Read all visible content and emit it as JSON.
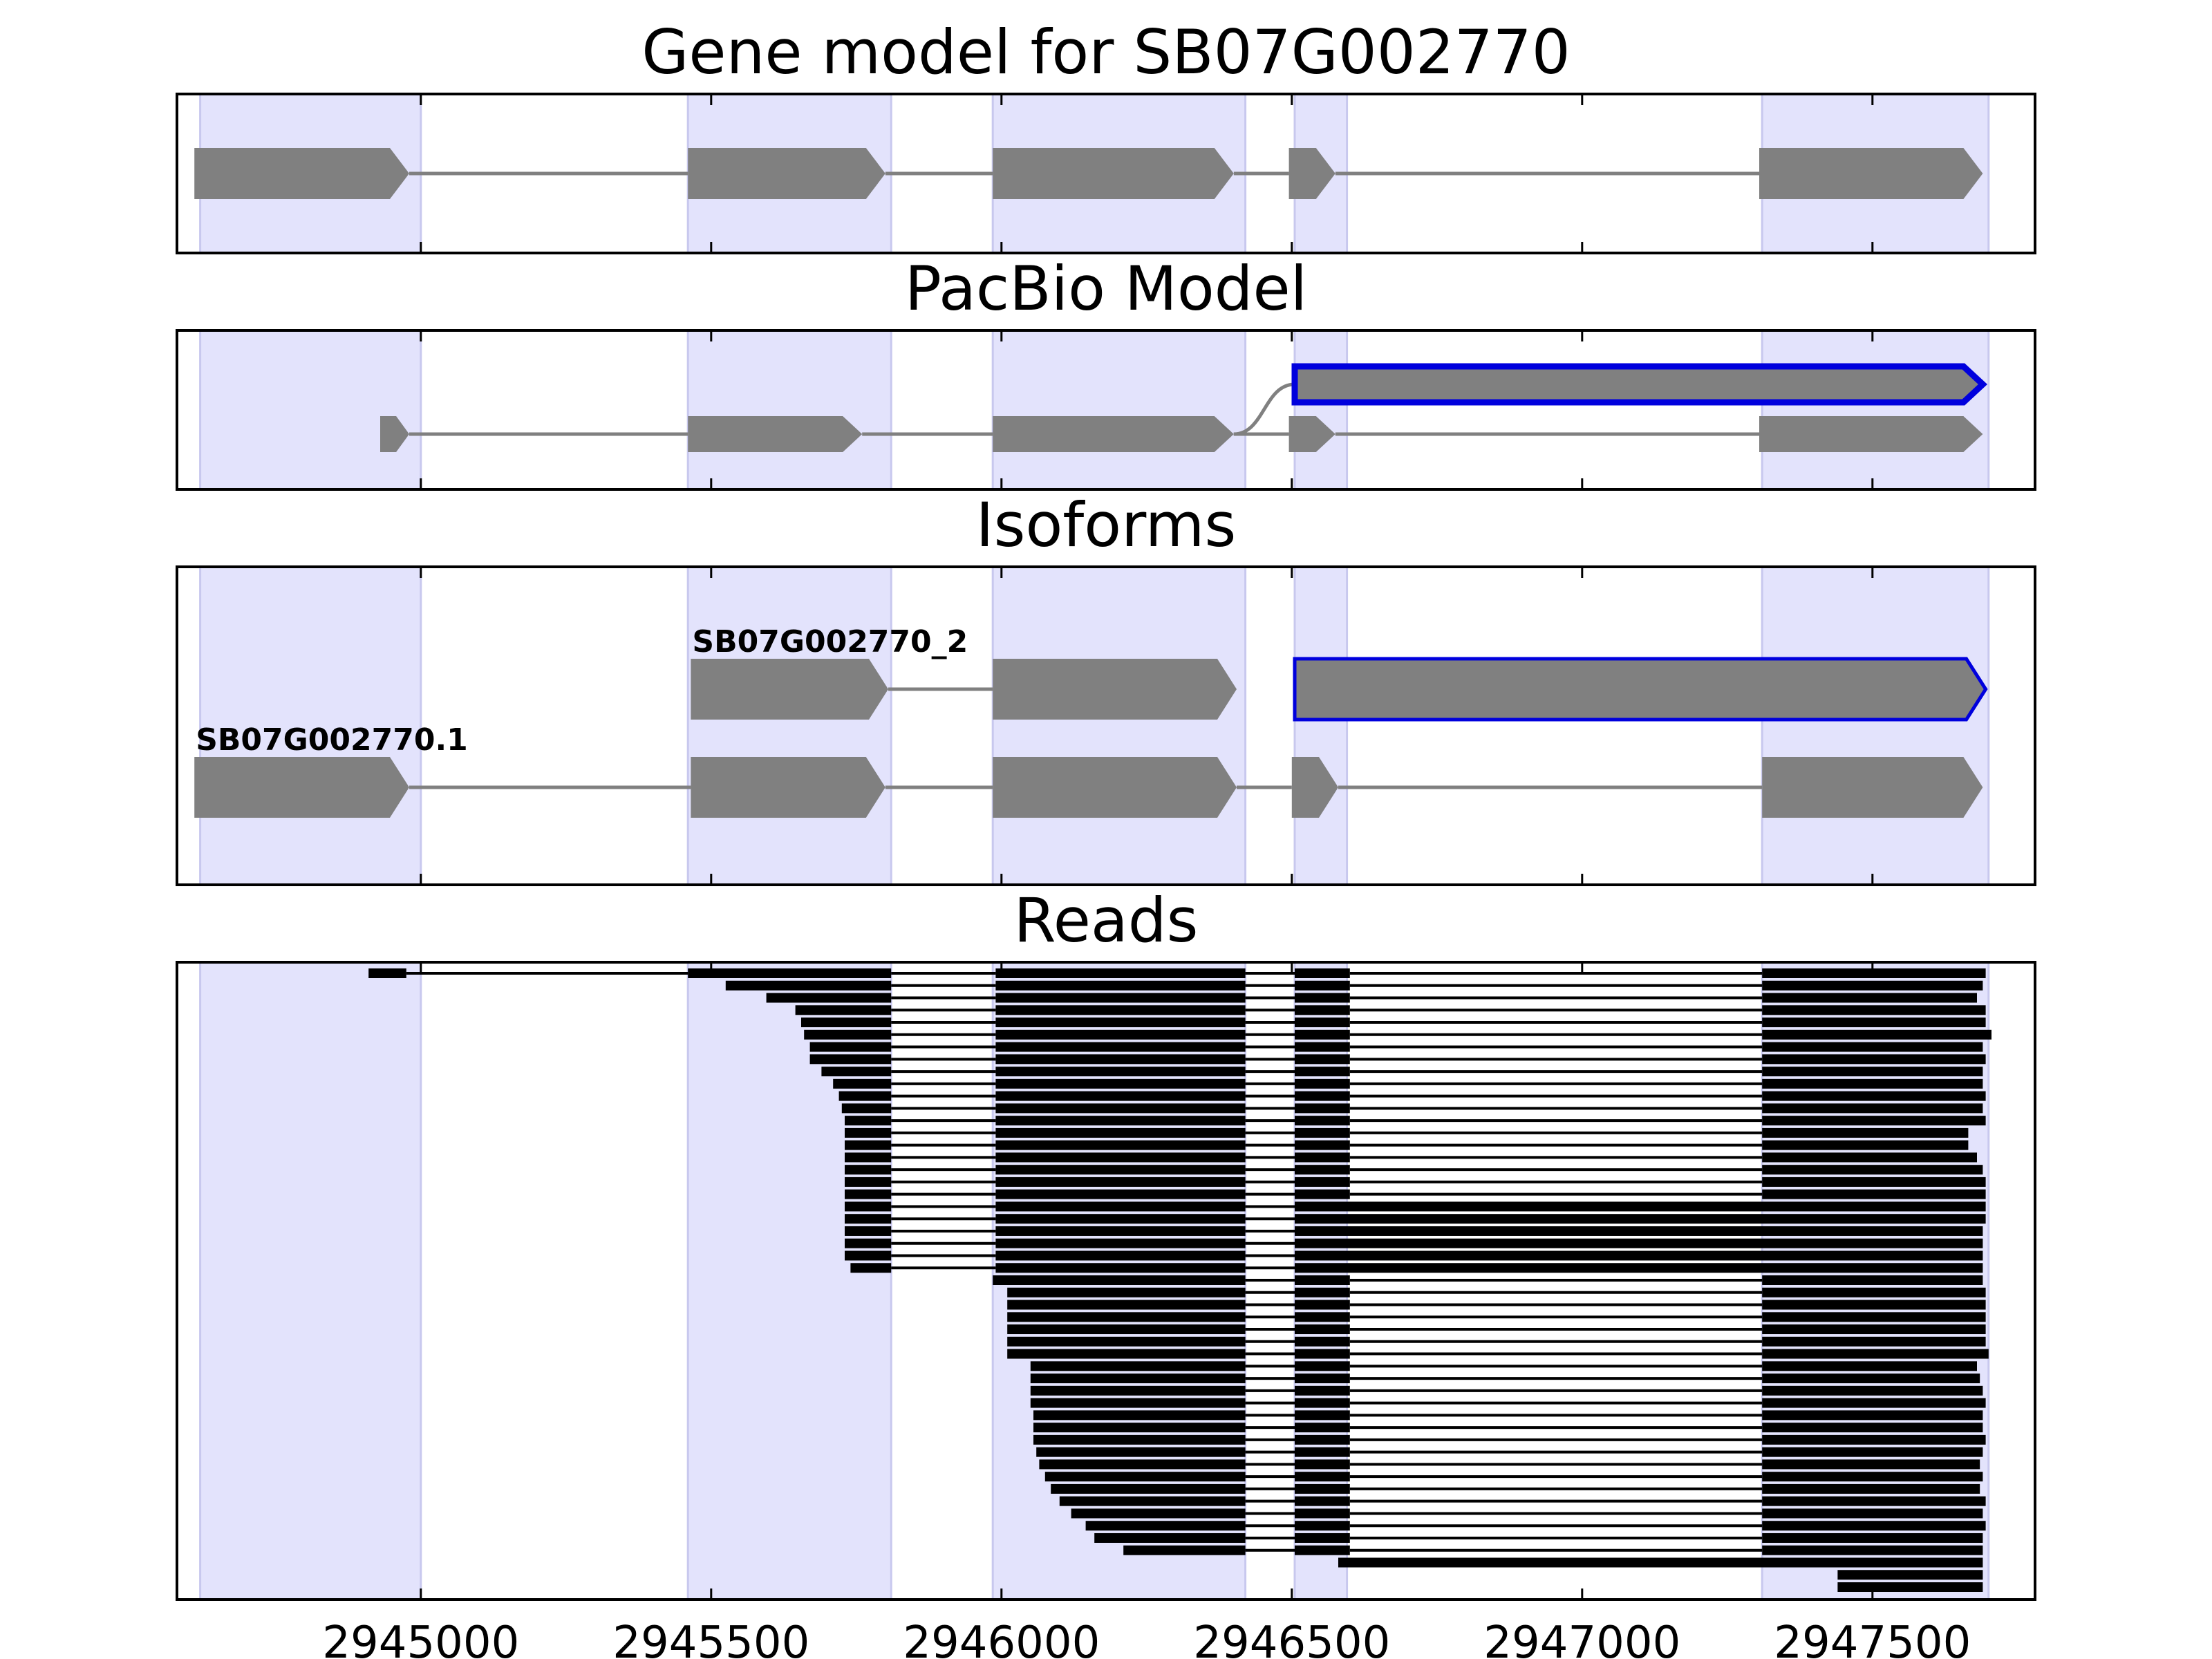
{
  "chart_data": {
    "type": "gene_track",
    "title": "",
    "x_range": [
      2944580,
      2947780
    ],
    "x_ticks": [
      2945000,
      2945500,
      2946000,
      2946500,
      2947000,
      2947500
    ],
    "x_tick_labels": [
      "2945000",
      "2945500",
      "2946000",
      "2946500",
      "2947000",
      "2947500"
    ],
    "colors": {
      "exon_fill": "#808080",
      "intron_line": "#808080",
      "highlight_edge": "#0000dd",
      "exon_shade": "#e3e3fc",
      "shade_edge": "#c8c8ee",
      "read": "#000000",
      "axis": "#000000"
    },
    "exon_shading": [
      [
        2944620,
        2945000
      ],
      [
        2945460,
        2945810
      ],
      [
        2945985,
        2946420
      ],
      [
        2946505,
        2946595
      ],
      [
        2947310,
        2947700
      ]
    ],
    "panels": [
      {
        "id": "gene-model",
        "title": "Gene model for SB07G002770",
        "lane_count": 1,
        "transcripts": [
          {
            "lane": 0,
            "label": "",
            "highlight": false,
            "exons": [
              [
                2944610,
                2944980
              ],
              [
                2945460,
                2945800
              ],
              [
                2945985,
                2946400
              ],
              [
                2946495,
                2946575
              ],
              [
                2947305,
                2947690
              ]
            ]
          }
        ]
      },
      {
        "id": "pacbio-model",
        "title": "PacBio Model",
        "lane_count": 2,
        "transcripts": [
          {
            "lane": 0,
            "label": "",
            "highlight": false,
            "exons": [
              [
                2944930,
                2944980
              ],
              [
                2945460,
                2945760
              ],
              [
                2945985,
                2946400
              ],
              [
                2946495,
                2946575
              ],
              [
                2947305,
                2947690
              ]
            ]
          },
          {
            "lane": 1,
            "label": "",
            "highlight": true,
            "branch_from": 2946400,
            "exons": [
              [
                2946505,
                2947690
              ]
            ]
          }
        ]
      },
      {
        "id": "isoforms",
        "title": "Isoforms",
        "lane_count": 2,
        "transcripts": [
          {
            "lane": 0,
            "label": "SB07G002770.1",
            "highlight": false,
            "exons": [
              [
                2944610,
                2944980
              ],
              [
                2945465,
                2945800
              ],
              [
                2945985,
                2946405
              ],
              [
                2946500,
                2946580
              ],
              [
                2947310,
                2947690
              ]
            ]
          },
          {
            "lane": 1,
            "label": "SB07G002770_2",
            "highlight": false,
            "exons": [
              [
                2945465,
                2945805
              ],
              [
                2945985,
                2946405
              ]
            ]
          },
          {
            "lane": 1,
            "label": "",
            "highlight": true,
            "exons": [
              [
                2946505,
                2947695
              ]
            ]
          }
        ]
      },
      {
        "id": "reads",
        "title": "Reads",
        "reads": [
          [
            [
              2944910,
              2944975
            ],
            [
              2945460,
              2945810
            ],
            [
              2945990,
              2946420
            ],
            [
              2946505,
              2946600
            ],
            [
              2947310,
              2947695
            ]
          ],
          [
            [
              2945525,
              2945810
            ],
            [
              2945990,
              2946420
            ],
            [
              2946505,
              2946600
            ],
            [
              2947310,
              2947690
            ]
          ],
          [
            [
              2945595,
              2945810
            ],
            [
              2945990,
              2946420
            ],
            [
              2946505,
              2946600
            ],
            [
              2947310,
              2947680
            ]
          ],
          [
            [
              2945645,
              2945810
            ],
            [
              2945990,
              2946420
            ],
            [
              2946505,
              2946600
            ],
            [
              2947310,
              2947695
            ]
          ],
          [
            [
              2945655,
              2945810
            ],
            [
              2945990,
              2946420
            ],
            [
              2946505,
              2946600
            ],
            [
              2947310,
              2947695
            ]
          ],
          [
            [
              2945660,
              2945810
            ],
            [
              2945990,
              2946420
            ],
            [
              2946505,
              2946600
            ],
            [
              2947310,
              2947705
            ]
          ],
          [
            [
              2945670,
              2945810
            ],
            [
              2945990,
              2946420
            ],
            [
              2946505,
              2946600
            ],
            [
              2947310,
              2947690
            ]
          ],
          [
            [
              2945670,
              2945810
            ],
            [
              2945990,
              2946420
            ],
            [
              2946505,
              2946600
            ],
            [
              2947310,
              2947695
            ]
          ],
          [
            [
              2945690,
              2945810
            ],
            [
              2945990,
              2946420
            ],
            [
              2946505,
              2946600
            ],
            [
              2947310,
              2947690
            ]
          ],
          [
            [
              2945710,
              2945810
            ],
            [
              2945990,
              2946420
            ],
            [
              2946505,
              2946600
            ],
            [
              2947310,
              2947690
            ]
          ],
          [
            [
              2945720,
              2945810
            ],
            [
              2945990,
              2946420
            ],
            [
              2946505,
              2946600
            ],
            [
              2947310,
              2947695
            ]
          ],
          [
            [
              2945725,
              2945810
            ],
            [
              2945990,
              2946420
            ],
            [
              2946505,
              2946600
            ],
            [
              2947310,
              2947690
            ]
          ],
          [
            [
              2945730,
              2945810
            ],
            [
              2945990,
              2946420
            ],
            [
              2946505,
              2946600
            ],
            [
              2947310,
              2947695
            ]
          ],
          [
            [
              2945730,
              2945810
            ],
            [
              2945990,
              2946420
            ],
            [
              2946505,
              2946600
            ],
            [
              2947310,
              2947665
            ]
          ],
          [
            [
              2945730,
              2945810
            ],
            [
              2945990,
              2946420
            ],
            [
              2946505,
              2946600
            ],
            [
              2947310,
              2947665
            ]
          ],
          [
            [
              2945730,
              2945810
            ],
            [
              2945990,
              2946420
            ],
            [
              2946505,
              2946600
            ],
            [
              2947310,
              2947680
            ]
          ],
          [
            [
              2945730,
              2945810
            ],
            [
              2945990,
              2946420
            ],
            [
              2946505,
              2946600
            ],
            [
              2947310,
              2947690
            ]
          ],
          [
            [
              2945730,
              2945810
            ],
            [
              2945990,
              2946420
            ],
            [
              2946505,
              2946600
            ],
            [
              2947310,
              2947695
            ]
          ],
          [
            [
              2945730,
              2945810
            ],
            [
              2945990,
              2946420
            ],
            [
              2946505,
              2946600
            ],
            [
              2947310,
              2947695
            ]
          ],
          [
            [
              2945730,
              2945810
            ],
            [
              2945990,
              2946420
            ],
            [
              2946505,
              2947695
            ]
          ],
          [
            [
              2945730,
              2945810
            ],
            [
              2945990,
              2946420
            ],
            [
              2946505,
              2947695
            ]
          ],
          [
            [
              2945730,
              2945810
            ],
            [
              2945990,
              2946420
            ],
            [
              2946505,
              2947690
            ]
          ],
          [
            [
              2945730,
              2945810
            ],
            [
              2945990,
              2946420
            ],
            [
              2946505,
              2947690
            ]
          ],
          [
            [
              2945730,
              2945810
            ],
            [
              2945990,
              2946420
            ],
            [
              2946505,
              2947690
            ]
          ],
          [
            [
              2945740,
              2945810
            ],
            [
              2945990,
              2946420
            ],
            [
              2946505,
              2947690
            ]
          ],
          [
            [
              2945985,
              2946420
            ],
            [
              2946505,
              2946600
            ],
            [
              2947310,
              2947690
            ]
          ],
          [
            [
              2946010,
              2946420
            ],
            [
              2946505,
              2946600
            ],
            [
              2947310,
              2947695
            ]
          ],
          [
            [
              2946010,
              2946420
            ],
            [
              2946505,
              2946600
            ],
            [
              2947310,
              2947695
            ]
          ],
          [
            [
              2946010,
              2946420
            ],
            [
              2946505,
              2946600
            ],
            [
              2947310,
              2947695
            ]
          ],
          [
            [
              2946010,
              2946420
            ],
            [
              2946505,
              2946600
            ],
            [
              2947310,
              2947695
            ]
          ],
          [
            [
              2946010,
              2946420
            ],
            [
              2946505,
              2946600
            ],
            [
              2947310,
              2947695
            ]
          ],
          [
            [
              2946010,
              2946420
            ],
            [
              2946505,
              2946600
            ],
            [
              2947310,
              2947700
            ]
          ],
          [
            [
              2946050,
              2946420
            ],
            [
              2946505,
              2946600
            ],
            [
              2947310,
              2947680
            ]
          ],
          [
            [
              2946050,
              2946420
            ],
            [
              2946505,
              2946600
            ],
            [
              2947310,
              2947685
            ]
          ],
          [
            [
              2946050,
              2946420
            ],
            [
              2946505,
              2946600
            ],
            [
              2947310,
              2947690
            ]
          ],
          [
            [
              2946050,
              2946420
            ],
            [
              2946505,
              2946600
            ],
            [
              2947310,
              2947695
            ]
          ],
          [
            [
              2946055,
              2946420
            ],
            [
              2946505,
              2946600
            ],
            [
              2947310,
              2947690
            ]
          ],
          [
            [
              2946055,
              2946420
            ],
            [
              2946505,
              2946600
            ],
            [
              2947310,
              2947690
            ]
          ],
          [
            [
              2946055,
              2946420
            ],
            [
              2946505,
              2946600
            ],
            [
              2947310,
              2947695
            ]
          ],
          [
            [
              2946060,
              2946420
            ],
            [
              2946505,
              2946600
            ],
            [
              2947310,
              2947690
            ]
          ],
          [
            [
              2946065,
              2946420
            ],
            [
              2946505,
              2946600
            ],
            [
              2947310,
              2947685
            ]
          ],
          [
            [
              2946075,
              2946420
            ],
            [
              2946505,
              2946600
            ],
            [
              2947310,
              2947690
            ]
          ],
          [
            [
              2946085,
              2946420
            ],
            [
              2946505,
              2946600
            ],
            [
              2947310,
              2947685
            ]
          ],
          [
            [
              2946100,
              2946420
            ],
            [
              2946505,
              2946600
            ],
            [
              2947310,
              2947695
            ]
          ],
          [
            [
              2946120,
              2946420
            ],
            [
              2946505,
              2946600
            ],
            [
              2947310,
              2947690
            ]
          ],
          [
            [
              2946145,
              2946420
            ],
            [
              2946505,
              2946600
            ],
            [
              2947310,
              2947695
            ]
          ],
          [
            [
              2946160,
              2946420
            ],
            [
              2946505,
              2946600
            ],
            [
              2947310,
              2947690
            ]
          ],
          [
            [
              2946210,
              2946420
            ],
            [
              2946505,
              2946600
            ],
            [
              2947310,
              2947690
            ]
          ],
          [
            [
              2946580,
              2947690
            ]
          ],
          [
            [
              2947440,
              2947690
            ]
          ],
          [
            [
              2947440,
              2947690
            ]
          ]
        ]
      }
    ]
  }
}
